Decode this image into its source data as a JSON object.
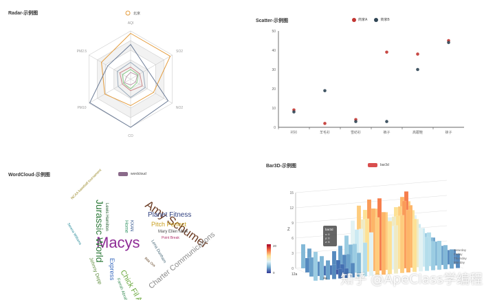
{
  "radar": {
    "title": "Radar-示例图",
    "legend": [
      "北京"
    ],
    "chart_data": {
      "type": "radar",
      "indicators": [
        "AQI",
        "SO2",
        "NO2",
        "CO",
        "PM10",
        "PM2.5"
      ],
      "series": [
        {
          "values": [
            0.95,
            0.95,
            0.55,
            0.55,
            0.62,
            0.7
          ],
          "color": "#e49b3b"
        },
        {
          "values": [
            0.72,
            0.4,
            0.9,
            1.0,
            0.98,
            0.55
          ],
          "color": "#6a7a95"
        },
        {
          "values": [
            0.35,
            0.3,
            0.35,
            0.38,
            0.3,
            0.32
          ],
          "color": "#9ab"
        },
        {
          "values": [
            0.25,
            0.22,
            0.28,
            0.24,
            0.2,
            0.26
          ],
          "color": "#c88"
        },
        {
          "values": [
            0.2,
            0.18,
            0.15,
            0.2,
            0.17,
            0.19
          ],
          "color": "#8c8"
        },
        {
          "values": [
            0.14,
            0.16,
            0.12,
            0.12,
            0.15,
            0.1
          ],
          "color": "#b9a"
        }
      ]
    }
  },
  "scatter": {
    "title": "Scatter-示例图",
    "legend": [
      {
        "name": "商家A",
        "color": "#c23531"
      },
      {
        "name": "商家B",
        "color": "#2f4554"
      }
    ],
    "chart_data": {
      "type": "scatter",
      "categories": [
        "衬衫",
        "羊毛衫",
        "雪纺衫",
        "裤子",
        "高跟鞋",
        "袜子"
      ],
      "ylim": [
        0,
        50
      ],
      "yticks": [
        "0",
        "10",
        "20",
        "30",
        "40",
        "50"
      ],
      "series": [
        {
          "name": "商家A",
          "values": [
            9,
            2,
            4,
            39,
            38,
            45
          ]
        },
        {
          "name": "商家B",
          "values": [
            8,
            19,
            3,
            3,
            30,
            44
          ]
        }
      ]
    }
  },
  "wordcloud": {
    "title": "WordCloud-示例图",
    "legend": "wordcloud",
    "words": [
      {
        "text": "Macys",
        "color": "#8e2b96"
      },
      {
        "text": "Amy Schumer",
        "color": "#6b3b23"
      },
      {
        "text": "Jurassic World",
        "color": "#2e7a3a"
      },
      {
        "text": "Charter Communications",
        "color": "#8b8b8b"
      },
      {
        "text": "Chick Fil A",
        "color": "#6aa83d"
      },
      {
        "text": "Planet Fitness",
        "color": "#2e3f7f"
      },
      {
        "text": "Pitch Perfect",
        "color": "#c9a020"
      },
      {
        "text": "Express",
        "color": "#3a6bbf"
      },
      {
        "text": "Home",
        "color": "#3e9a6d"
      },
      {
        "text": "Johnny Depp",
        "color": "#5b8a3a"
      },
      {
        "text": "Lena Dunham",
        "color": "#4b6b7a"
      },
      {
        "text": "Lewis Hamilton",
        "color": "#1e5a2a"
      },
      {
        "text": "KXAN",
        "color": "#2a4f8a"
      },
      {
        "text": "Mary Ellen Mark",
        "color": "#4a4a4a"
      },
      {
        "text": "Farrah Abraham",
        "color": "#3f8f5a"
      },
      {
        "text": "Rita Ora",
        "color": "#5b3b1b"
      },
      {
        "text": "Serena Williams",
        "color": "#2a8c9a"
      },
      {
        "text": "NCAA baseball tournament",
        "color": "#9a8a2a"
      },
      {
        "text": "Point Break",
        "color": "#b0306a"
      }
    ]
  },
  "bar3d": {
    "title": "Bar3D-示例图",
    "legend": "bar3d",
    "visual_map": {
      "max": "20",
      "min": "0"
    },
    "z_ticks": [
      "0",
      "3",
      "6",
      "9",
      "12",
      "15"
    ],
    "z_label": "Z",
    "x_label": "12a",
    "y_label": "4a",
    "days": [
      "Saturday",
      "Friday",
      "Thursday",
      "Monday"
    ],
    "tooltip": {
      "title": "bar3d",
      "rows": [
        "x: 0",
        "y: 0",
        "z: 5"
      ]
    },
    "chart_data": {
      "type": "bar3d",
      "value_range": [
        0,
        20
      ],
      "rows": [
        [
          5,
          4,
          3,
          2,
          1,
          3,
          4,
          6,
          9,
          12,
          11,
          10,
          8,
          7,
          9,
          11,
          13,
          12,
          9,
          6,
          5,
          4,
          3,
          2
        ],
        [
          3,
          2,
          2,
          1,
          1,
          2,
          3,
          5,
          8,
          10,
          14,
          12,
          9,
          8,
          10,
          12,
          15,
          11,
          8,
          6,
          5,
          4,
          3,
          2
        ],
        [
          4,
          3,
          2,
          2,
          1,
          2,
          4,
          6,
          9,
          11,
          13,
          15,
          12,
          9,
          11,
          14,
          13,
          10,
          8,
          7,
          5,
          4,
          3,
          3
        ],
        [
          6,
          5,
          4,
          3,
          2,
          2,
          3,
          5,
          7,
          9,
          12,
          13,
          11,
          10,
          12,
          13,
          11,
          9,
          7,
          6,
          6,
          5,
          4,
          3
        ]
      ]
    }
  },
  "watermark": "知乎 @ApeClass学编程"
}
